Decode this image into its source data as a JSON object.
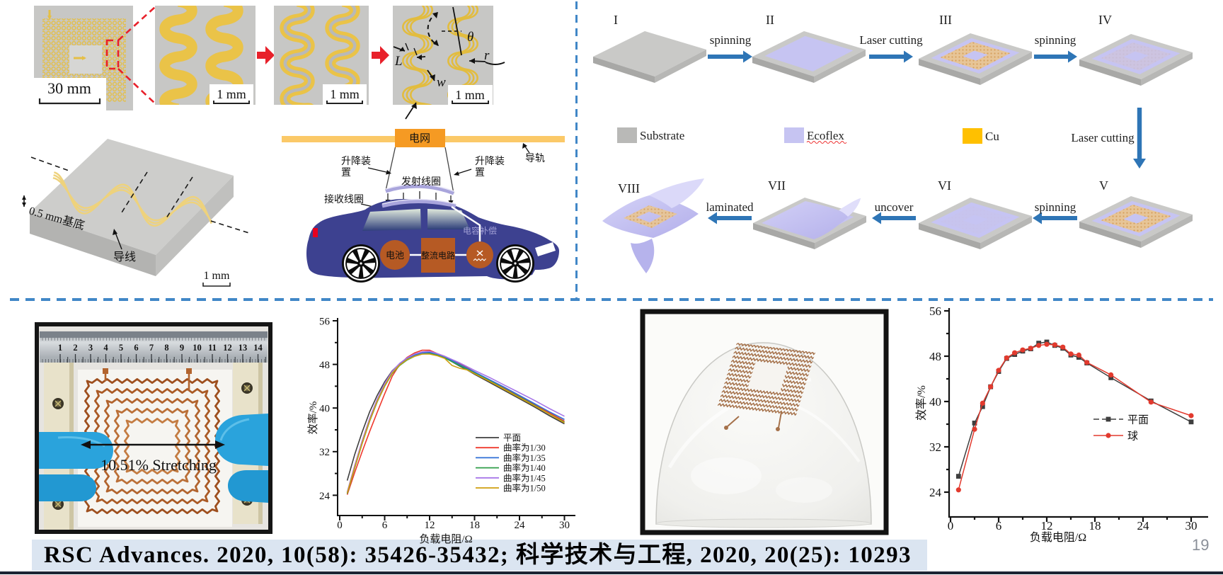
{
  "slide": {
    "page_number": "19",
    "citation": "RSC Advances. 2020, 10(58): 35426-35432; 科学技术与工程, 2020, 20(25): 10293",
    "accent_color": "#4187c7",
    "citation_bg": "#dbe5f1"
  },
  "coil_panels": {
    "scale_labels": [
      "30 mm",
      "1 mm",
      "1 mm",
      "1 mm"
    ],
    "param_labels": {
      "pitch": "L",
      "angle": "θ",
      "radius": "r",
      "width": "w"
    }
  },
  "substrate_3d": {
    "thickness_label": "0.5 mm基底",
    "wire_label": "导线",
    "scale_label": "1 mm"
  },
  "car_diagram": {
    "grid_label": "电网",
    "rail_label": "导轨",
    "lift_label_left": "升降装置",
    "lift_label_right": "升降装置",
    "tx_coil_label": "发射线圈",
    "rx_coil_label": "接收线圈",
    "battery_label": "电池",
    "rectifier_label": "整流电路",
    "capacitor_label": "电容补偿"
  },
  "fabrication": {
    "steps": [
      {
        "numeral": "I",
        "variant": "bare"
      },
      {
        "numeral": "II",
        "variant": "ecoflex"
      },
      {
        "numeral": "III",
        "variant": "coil"
      },
      {
        "numeral": "IV",
        "variant": "covered"
      },
      {
        "numeral": "V",
        "variant": "coil"
      },
      {
        "numeral": "VI",
        "variant": "covered-full"
      },
      {
        "numeral": "VII",
        "variant": "peel"
      },
      {
        "numeral": "VIII",
        "variant": "film"
      }
    ],
    "arrow_labels": [
      "spinning",
      "Laser cutting",
      "spinning",
      "Laser cutting",
      "spinning",
      "uncover",
      "laminated"
    ],
    "legend": [
      {
        "label": "Substrate",
        "color": "#b9b9b7"
      },
      {
        "label": "Ecoflex",
        "color": "#c6c4f2"
      },
      {
        "label": "Cu",
        "color": "#ffc000"
      }
    ]
  },
  "stretch_photo": {
    "stretch_label": "10.51% Stretching",
    "ruler_numbers": [
      "1",
      "2",
      "3",
      "4",
      "5",
      "6",
      "7",
      "8",
      "9",
      "10",
      "11",
      "12",
      "13",
      "14"
    ]
  },
  "chart_data": [
    {
      "type": "line",
      "title": "",
      "xlabel": "负载电阻/Ω",
      "ylabel": "效率/%",
      "xlim": [
        0,
        31.5
      ],
      "ylim": [
        20,
        56
      ],
      "xticks": [
        0,
        6,
        12,
        18,
        24,
        30
      ],
      "yticks": [
        24,
        32,
        40,
        48,
        56
      ],
      "grid": false,
      "legend_position": "right-center",
      "x": [
        1,
        2,
        3,
        4,
        5,
        6,
        7,
        8,
        9,
        10,
        11,
        12,
        13,
        14,
        15,
        16,
        17,
        18,
        20,
        22,
        24,
        26,
        28,
        30
      ],
      "series": [
        {
          "name": "平面",
          "color": "#3f3f3f",
          "values": [
            26.7,
            31.5,
            35.6,
            39.3,
            42.3,
            44.8,
            46.8,
            48.1,
            49.1,
            49.8,
            50.2,
            50.3,
            49.9,
            49.3,
            48.5,
            47.7,
            47.0,
            46.2,
            44.7,
            43.2,
            41.7,
            40.2,
            38.6,
            37.1
          ]
        },
        {
          "name": "曲率为1/30",
          "color": "#ef3b2f",
          "values": [
            24.1,
            28.2,
            32.0,
            35.7,
            39.2,
            42.6,
            45.8,
            48.0,
            49.3,
            50.1,
            50.6,
            50.6,
            50.0,
            49.5,
            48.8,
            48.2,
            47.4,
            46.6,
            45.1,
            43.6,
            42.1,
            40.6,
            39.1,
            37.6
          ]
        },
        {
          "name": "曲率为1/35",
          "color": "#2f6fd6",
          "values": [
            24.5,
            29.3,
            33.8,
            37.9,
            41.4,
            44.3,
            46.5,
            48.0,
            49.0,
            49.7,
            50.1,
            50.2,
            49.9,
            49.4,
            48.7,
            48.0,
            47.3,
            46.6,
            45.2,
            43.8,
            42.3,
            40.8,
            39.3,
            37.9
          ]
        },
        {
          "name": "曲率为1/40",
          "color": "#2f9e49",
          "values": [
            24.3,
            29.0,
            33.5,
            37.6,
            41.1,
            44.0,
            46.3,
            47.8,
            48.8,
            49.5,
            49.9,
            50.0,
            49.7,
            49.2,
            48.5,
            47.8,
            47.1,
            46.4,
            45.0,
            43.5,
            42.0,
            40.5,
            38.9,
            37.4
          ]
        },
        {
          "name": "曲率为1/45",
          "color": "#a777e8",
          "values": [
            24.6,
            29.5,
            34.0,
            38.1,
            41.6,
            44.5,
            46.7,
            48.2,
            49.2,
            49.9,
            50.3,
            50.4,
            50.0,
            49.5,
            48.9,
            48.3,
            47.6,
            46.9,
            45.6,
            44.2,
            42.8,
            41.4,
            39.9,
            38.5
          ]
        },
        {
          "name": "曲率为1/50",
          "color": "#cf9f0f",
          "values": [
            24.4,
            29.1,
            33.6,
            37.7,
            41.2,
            44.1,
            46.4,
            47.9,
            48.9,
            49.5,
            49.9,
            49.9,
            49.6,
            49.1,
            47.8,
            47.3,
            47.0,
            46.3,
            44.9,
            43.4,
            41.9,
            40.4,
            38.9,
            37.3
          ]
        }
      ]
    },
    {
      "type": "line",
      "title": "",
      "xlabel": "负载电阻/Ω",
      "ylabel": "效率/%",
      "xlim": [
        0,
        32
      ],
      "ylim": [
        20,
        56
      ],
      "xticks": [
        0,
        6,
        12,
        18,
        24,
        30
      ],
      "yticks": [
        24,
        32,
        40,
        48,
        56
      ],
      "grid": false,
      "legend_position": "right-center",
      "x": [
        1,
        3,
        4,
        5,
        6,
        7,
        8,
        9,
        10,
        11,
        12,
        13,
        14,
        15,
        16,
        17,
        20,
        25,
        30
      ],
      "series": [
        {
          "name": "平面",
          "color": "#3f3f3f",
          "marker": "square",
          "values": [
            26.8,
            36.2,
            39.1,
            42.6,
            45.3,
            47.6,
            48.3,
            48.9,
            49.3,
            50.3,
            50.5,
            49.9,
            49.4,
            48.2,
            47.8,
            46.8,
            44.2,
            40.1,
            36.4
          ]
        },
        {
          "name": "球",
          "color": "#e23a2e",
          "marker": "circle",
          "values": [
            24.4,
            35.1,
            39.7,
            42.6,
            45.5,
            47.7,
            48.6,
            49.1,
            49.4,
            49.9,
            50.1,
            50.0,
            49.6,
            48.4,
            48.2,
            46.9,
            44.7,
            39.9,
            37.5
          ]
        }
      ]
    }
  ]
}
